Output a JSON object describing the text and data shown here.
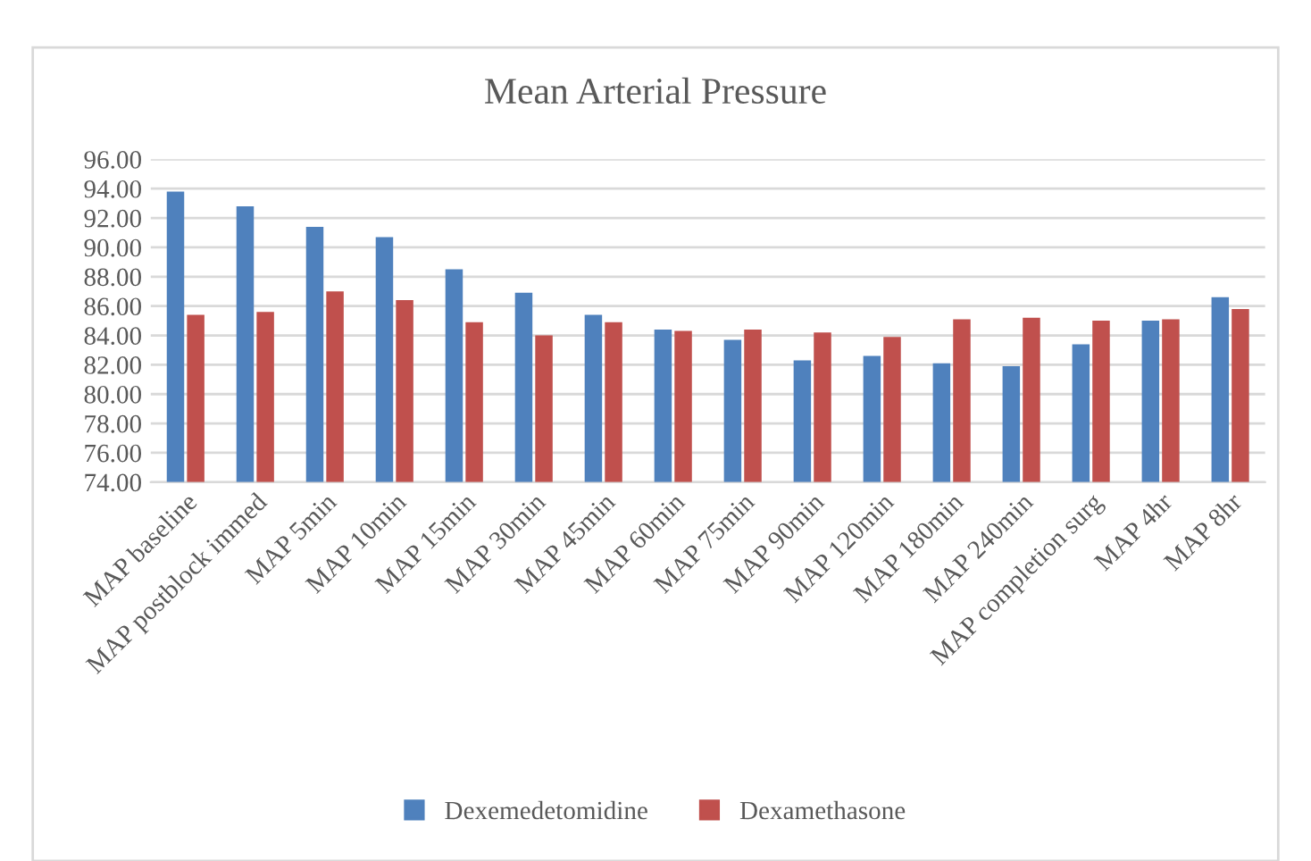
{
  "chart_data": {
    "type": "bar",
    "title": "Mean Arterial Pressure",
    "categories": [
      "MAP baseline",
      "MAP postblock immed",
      "MAP 5min",
      "MAP 10min",
      "MAP 15min",
      "MAP 30min",
      "MAP 45min",
      "MAP 60min",
      "MAP 75min",
      "MAP 90min",
      "MAP 120min",
      "MAP 180min",
      "MAP 240min",
      "MAP completion surg",
      "MAP 4hr",
      "MAP 8hr"
    ],
    "series": [
      {
        "name": "Dexemedetomidine",
        "color": "#4f81bd",
        "values": [
          93.8,
          92.8,
          91.4,
          90.7,
          88.5,
          86.9,
          85.4,
          84.4,
          83.7,
          82.3,
          82.6,
          82.1,
          81.9,
          83.4,
          85.0,
          86.6
        ]
      },
      {
        "name": "Dexamethasone",
        "color": "#c0504d",
        "values": [
          85.4,
          85.6,
          87.0,
          86.4,
          84.9,
          84.0,
          84.9,
          84.3,
          84.4,
          84.2,
          83.9,
          85.1,
          85.2,
          85.0,
          85.1,
          85.8
        ]
      }
    ],
    "ylim": [
      74,
      96
    ],
    "yticks": [
      {
        "value": 74,
        "label": "74.00"
      },
      {
        "value": 76,
        "label": "76.00"
      },
      {
        "value": 78,
        "label": "78.00"
      },
      {
        "value": 80,
        "label": "80.00"
      },
      {
        "value": 82,
        "label": "82.00"
      },
      {
        "value": 84,
        "label": "84.00"
      },
      {
        "value": 86,
        "label": "86.00"
      },
      {
        "value": 88,
        "label": "88.00"
      },
      {
        "value": 90,
        "label": "90.00"
      },
      {
        "value": 92,
        "label": "92.00"
      },
      {
        "value": 94,
        "label": "94.00"
      },
      {
        "value": 96,
        "label": "96.00"
      }
    ],
    "grid": "y",
    "legend": "bottom"
  }
}
